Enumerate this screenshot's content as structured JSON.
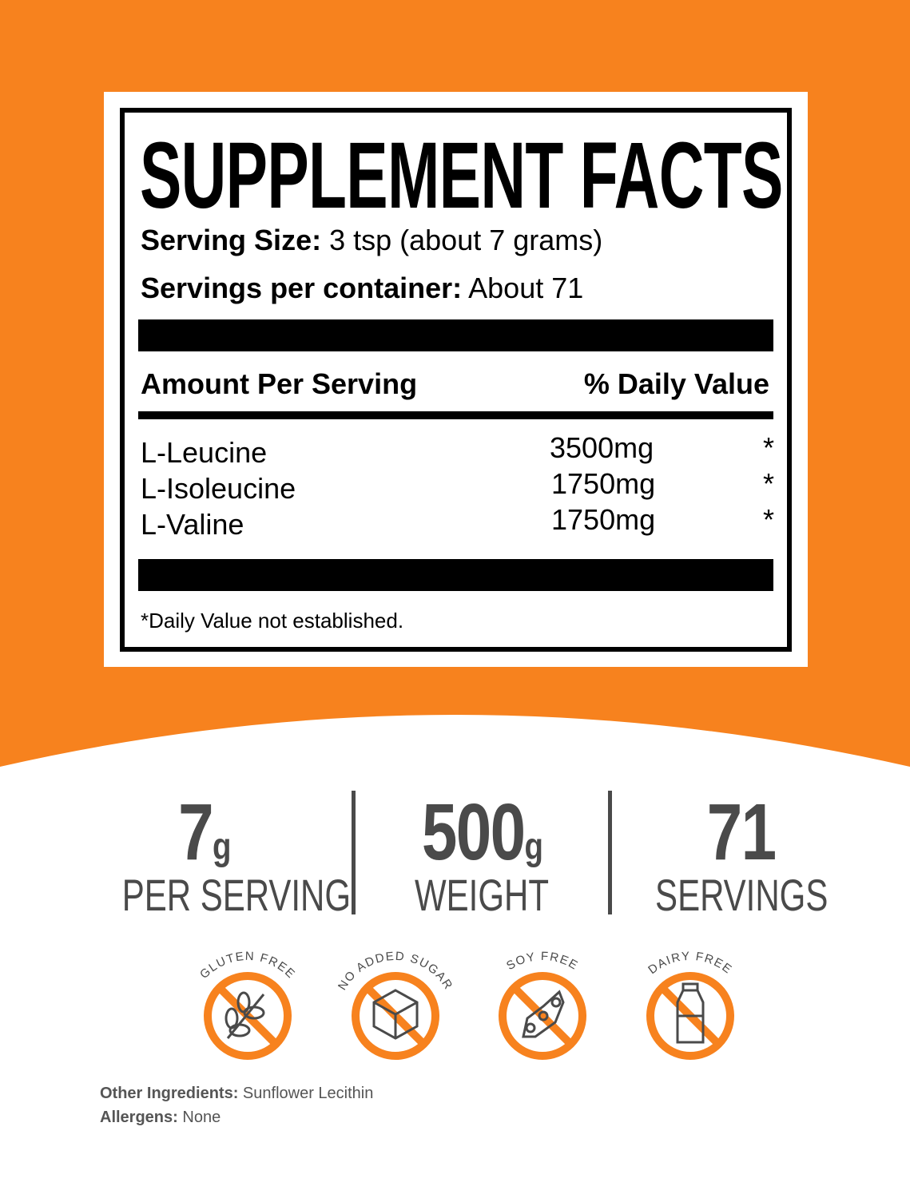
{
  "colors": {
    "accent": "#f7821e",
    "text": "#000000",
    "stat_gray": "#4a4a4a"
  },
  "label": {
    "title": "SUPPLEMENT FACTS",
    "serving_size_label": "Serving Size:",
    "serving_size_value": "3 tsp (about 7 grams)",
    "servings_label": "Servings per container:",
    "servings_value": "About 71",
    "amount_header": "Amount Per Serving",
    "dv_header": "% Daily Value",
    "nutrients": [
      {
        "name": "L-Leucine",
        "amount": "3500mg",
        "dv": "*"
      },
      {
        "name": "L-Isoleucine",
        "amount": "1750mg",
        "dv": "*"
      },
      {
        "name": "L-Valine",
        "amount": "1750mg",
        "dv": "*"
      }
    ],
    "footnote": "*Daily Value not established."
  },
  "stats": [
    {
      "value": "7",
      "unit": "g",
      "label": "PER SERVING"
    },
    {
      "value": "500",
      "unit": "g",
      "label": "WEIGHT"
    },
    {
      "value": "71",
      "unit": "",
      "label": "SERVINGS"
    }
  ],
  "badges": [
    {
      "label": "GLUTEN FREE",
      "icon": "wheat-icon"
    },
    {
      "label": "NO ADDED SUGAR",
      "icon": "sugar-cube-icon"
    },
    {
      "label": "SOY FREE",
      "icon": "soybean-icon"
    },
    {
      "label": "DAIRY FREE",
      "icon": "milk-bottle-icon"
    }
  ],
  "other_ingredients": {
    "label": "Other Ingredients:",
    "value": "Sunflower Lecithin"
  },
  "allergens": {
    "label": "Allergens:",
    "value": "None"
  }
}
